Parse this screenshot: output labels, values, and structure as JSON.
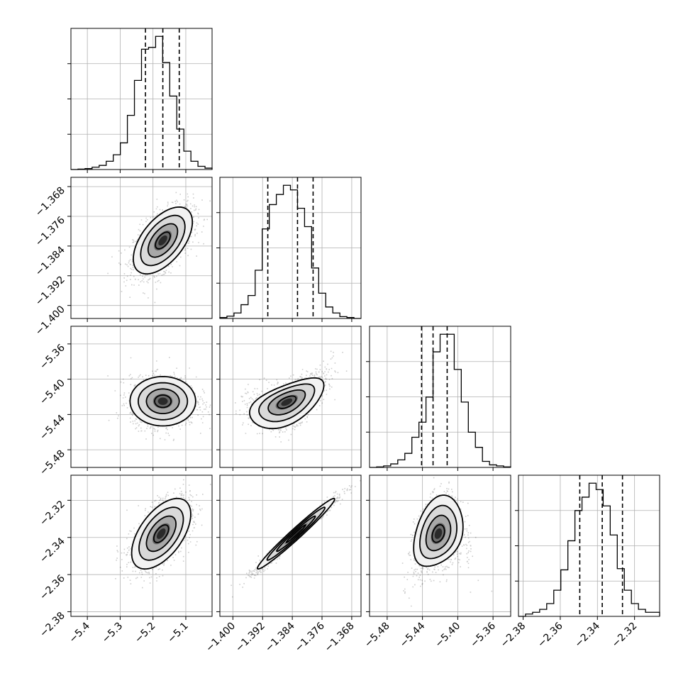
{
  "chart_data": {
    "type": "corner",
    "title": "",
    "parameters": [
      {
        "id": "p0",
        "label": "",
        "range": [
          -5.45,
          -5.02
        ],
        "ticks": [
          "-5.4",
          "-5.3",
          "-5.2",
          "-5.1"
        ],
        "tick_values": [
          -5.4,
          -5.3,
          -5.2,
          -5.1
        ]
      },
      {
        "id": "p1",
        "label": "",
        "range": [
          -1.4035,
          -1.3655
        ],
        "ticks": [
          "-1.400",
          "-1.392",
          "-1.384",
          "-1.376",
          "-1.368"
        ],
        "tick_values": [
          -1.4,
          -1.392,
          -1.384,
          -1.376,
          -1.368
        ]
      },
      {
        "id": "p2",
        "label": "",
        "range": [
          -5.5,
          -5.34
        ],
        "ticks": [
          "-5.48",
          "-5.44",
          "-5.40",
          "-5.36"
        ],
        "tick_values": [
          -5.48,
          -5.44,
          -5.4,
          -5.36
        ]
      },
      {
        "id": "p3",
        "label": "",
        "range": [
          -2.3825,
          -2.3065
        ],
        "ticks": [
          "-2.38",
          "-2.36",
          "-2.34",
          "-2.32"
        ],
        "tick_values": [
          -2.38,
          -2.36,
          -2.34,
          -2.32
        ]
      }
    ],
    "histograms": [
      {
        "param": "p0",
        "quantiles": [
          -5.223,
          -5.17,
          -5.12
        ],
        "counts": [
          0,
          1,
          2,
          5,
          9,
          18,
          32,
          58,
          118,
          194,
          262,
          266,
          290,
          233,
          160,
          88,
          40,
          18,
          7,
          3
        ]
      },
      {
        "param": "p1",
        "quantiles": [
          -1.3906,
          -1.3826,
          -1.3784
        ],
        "counts": [
          2,
          5,
          12,
          30,
          50,
          105,
          195,
          248,
          270,
          290,
          280,
          240,
          200,
          110,
          55,
          25,
          12,
          4,
          2,
          0
        ]
      },
      {
        "param": "p2",
        "quantiles": [
          -5.441,
          -5.428,
          -5.412
        ],
        "counts": [
          0,
          1,
          3,
          7,
          15,
          28,
          60,
          90,
          140,
          230,
          265,
          265,
          195,
          130,
          70,
          40,
          12,
          5,
          3,
          1
        ]
      },
      {
        "param": "p3",
        "quantiles": [
          -2.3495,
          -2.3374,
          -2.3265
        ],
        "counts": [
          0,
          4,
          7,
          12,
          22,
          45,
          80,
          130,
          182,
          205,
          229,
          218,
          190,
          140,
          82,
          45,
          22,
          12,
          7,
          7
        ]
      }
    ],
    "hist_grid_fractions": [
      0.25,
      0.5,
      0.75
    ],
    "pairs": [
      {
        "x": "p0",
        "y": "p1",
        "center": [
          -5.17,
          -1.3825
        ],
        "sd": [
          0.045,
          0.0045
        ],
        "rho": 0.55,
        "skew": 0
      },
      {
        "x": "p0",
        "y": "p2",
        "center": [
          -5.17,
          -5.425
        ],
        "sd": [
          0.05,
          0.014
        ],
        "rho": 0.0,
        "skew": 0
      },
      {
        "x": "p1",
        "y": "p2",
        "center": [
          -1.3855,
          -5.426
        ],
        "sd": [
          0.005,
          0.014
        ],
        "rho": 0.55,
        "skew": 0.7
      },
      {
        "x": "p0",
        "y": "p3",
        "center": [
          -5.175,
          -2.338
        ],
        "sd": [
          0.045,
          0.0095
        ],
        "rho": 0.55,
        "skew": 0
      },
      {
        "x": "p1",
        "y": "p3",
        "center": [
          -1.383,
          -2.338
        ],
        "sd": [
          0.0052,
          0.0095
        ],
        "rho": 0.98,
        "skew": 0
      },
      {
        "x": "p2",
        "y": "p3",
        "center": [
          -5.422,
          -2.338
        ],
        "sd": [
          0.014,
          0.0095
        ],
        "rho": 0.3,
        "skew": -0.6
      }
    ],
    "contour_levels_sigma": [
      0.5,
      1.0,
      1.5,
      2.0
    ],
    "grid": true,
    "legend": "none"
  }
}
